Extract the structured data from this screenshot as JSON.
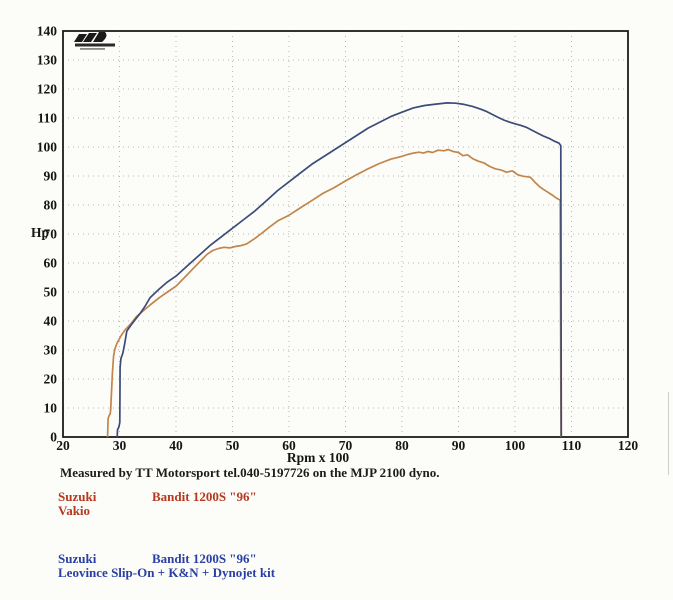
{
  "chart_data": {
    "type": "line",
    "title": "",
    "xlabel": "Rpm x 100",
    "ylabel": "Hp",
    "xlim": [
      20,
      120
    ],
    "ylim": [
      0,
      140
    ],
    "x_ticks": [
      20,
      30,
      40,
      50,
      60,
      70,
      80,
      90,
      100,
      110,
      120
    ],
    "y_ticks": [
      0,
      10,
      20,
      30,
      40,
      50,
      60,
      70,
      80,
      90,
      100,
      110,
      120,
      130,
      140
    ],
    "grid": "dotted",
    "legend_position": "none",
    "series": [
      {
        "key": "stock",
        "name": "Suzuki Bandit 1200S \"96\" Vakio",
        "color": "#c2854c",
        "peak_hp": 99,
        "points": [
          [
            27.9,
            0
          ],
          [
            27.95,
            4
          ],
          [
            28.0,
            6.5
          ],
          [
            28.2,
            7.5
          ],
          [
            28.35,
            8
          ],
          [
            28.45,
            9.5
          ],
          [
            28.55,
            14
          ],
          [
            28.75,
            22
          ],
          [
            28.95,
            28
          ],
          [
            29.2,
            30.5
          ],
          [
            29.6,
            32.5
          ],
          [
            30.3,
            35
          ],
          [
            31.0,
            37
          ],
          [
            32.0,
            39
          ],
          [
            33.0,
            41.5
          ],
          [
            33.6,
            42.5
          ],
          [
            34.5,
            44
          ],
          [
            35.4,
            45.5
          ],
          [
            37.0,
            48
          ],
          [
            38.5,
            50
          ],
          [
            40.0,
            52
          ],
          [
            41.5,
            55
          ],
          [
            43.0,
            58
          ],
          [
            44.5,
            61
          ],
          [
            45.5,
            63
          ],
          [
            46.5,
            64.3
          ],
          [
            47.5,
            65
          ],
          [
            48.5,
            65.4
          ],
          [
            49.5,
            65.2
          ],
          [
            50.5,
            65.7
          ],
          [
            51.5,
            66
          ],
          [
            52.5,
            66.6
          ],
          [
            54.0,
            68.5
          ],
          [
            55.0,
            70
          ],
          [
            56.6,
            72.5
          ],
          [
            58.0,
            74.5
          ],
          [
            60.0,
            76.5
          ],
          [
            62.0,
            79
          ],
          [
            64.0,
            81.5
          ],
          [
            66.0,
            84
          ],
          [
            68.0,
            86
          ],
          [
            70.0,
            88.3
          ],
          [
            72.0,
            90.5
          ],
          [
            74.0,
            92.5
          ],
          [
            76.0,
            94.3
          ],
          [
            78.0,
            95.8
          ],
          [
            80.0,
            96.8
          ],
          [
            81.0,
            97.4
          ],
          [
            82.0,
            97.9
          ],
          [
            83.0,
            98.2
          ],
          [
            83.8,
            97.9
          ],
          [
            84.6,
            98.5
          ],
          [
            85.4,
            98.1
          ],
          [
            86.4,
            98.9
          ],
          [
            87.4,
            98.7
          ],
          [
            88.2,
            99.1
          ],
          [
            89.0,
            98.5
          ],
          [
            90.0,
            98.1
          ],
          [
            90.8,
            97
          ],
          [
            91.6,
            97.3
          ],
          [
            92.5,
            96
          ],
          [
            93.5,
            95.1
          ],
          [
            94.5,
            94.5
          ],
          [
            95.5,
            93.3
          ],
          [
            96.5,
            92.5
          ],
          [
            97.5,
            92.1
          ],
          [
            98.5,
            91.3
          ],
          [
            99.5,
            91.8
          ],
          [
            100.5,
            90.4
          ],
          [
            101.5,
            89.9
          ],
          [
            102.7,
            89.6
          ],
          [
            103.5,
            87.9
          ],
          [
            104.3,
            86.4
          ],
          [
            105.0,
            85.4
          ],
          [
            105.8,
            84.4
          ],
          [
            106.6,
            83.4
          ],
          [
            107.3,
            82.4
          ],
          [
            108.0,
            81.7
          ],
          [
            108.15,
            0
          ]
        ]
      },
      {
        "key": "modified",
        "name": "Suzuki Bandit 1200S \"96\" Leovince Slip-On + K&N + Dynojet kit",
        "color": "#3c4b78",
        "peak_hp": 115,
        "points": [
          [
            29.6,
            0
          ],
          [
            29.65,
            2.5
          ],
          [
            29.9,
            3.5
          ],
          [
            30.0,
            4.5
          ],
          [
            30.05,
            5
          ],
          [
            30.1,
            24
          ],
          [
            30.25,
            27
          ],
          [
            30.6,
            29
          ],
          [
            30.9,
            32
          ],
          [
            31.3,
            36.5
          ],
          [
            32.0,
            38.5
          ],
          [
            33.0,
            41
          ],
          [
            33.6,
            42.5
          ],
          [
            34.5,
            45
          ],
          [
            35.4,
            48
          ],
          [
            37.0,
            51
          ],
          [
            38.5,
            53.5
          ],
          [
            40.0,
            55.5
          ],
          [
            42.0,
            59
          ],
          [
            44.0,
            62.5
          ],
          [
            46.0,
            66
          ],
          [
            48.0,
            69
          ],
          [
            50.0,
            72
          ],
          [
            52.0,
            75
          ],
          [
            54.0,
            78
          ],
          [
            56.0,
            81.5
          ],
          [
            58.0,
            85
          ],
          [
            60.0,
            88
          ],
          [
            62.0,
            91
          ],
          [
            64.0,
            94
          ],
          [
            66.0,
            96.5
          ],
          [
            68.0,
            99
          ],
          [
            70.0,
            101.5
          ],
          [
            72.0,
            104
          ],
          [
            74.0,
            106.5
          ],
          [
            76.0,
            108.5
          ],
          [
            78.0,
            110.5
          ],
          [
            80.0,
            112
          ],
          [
            82.0,
            113.5
          ],
          [
            84.0,
            114.3
          ],
          [
            86.0,
            114.8
          ],
          [
            88.0,
            115.2
          ],
          [
            89.5,
            115.1
          ],
          [
            91.0,
            114.7
          ],
          [
            92.5,
            114
          ],
          [
            94.0,
            113
          ],
          [
            95.0,
            112.2
          ],
          [
            96.0,
            111.2
          ],
          [
            97.0,
            110.2
          ],
          [
            98.0,
            109.3
          ],
          [
            99.0,
            108.6
          ],
          [
            100.0,
            108
          ],
          [
            101.0,
            107.5
          ],
          [
            102.0,
            106.8
          ],
          [
            103.0,
            105.8
          ],
          [
            104.0,
            104.8
          ],
          [
            105.0,
            103.8
          ],
          [
            106.0,
            103
          ],
          [
            107.0,
            102
          ],
          [
            107.8,
            101.3
          ],
          [
            108.1,
            100.5
          ],
          [
            108.2,
            0
          ]
        ]
      }
    ]
  },
  "axes": {
    "y_label": "Hp",
    "x_label": "Rpm x 100"
  },
  "footer": {
    "measured_by": "Measured by TT Motorsport tel.040-5197726 on the MJP 2100 dyno.",
    "legend_stock": {
      "make": "Suzuki",
      "model": "Bandit 1200S \"96\"",
      "config": "Vakio",
      "color": "#b5381f"
    },
    "legend_mod": {
      "make": "Suzuki",
      "model": "Bandit 1200S \"96\"",
      "config": "Leovince Slip-On + K&N + Dynojet kit",
      "color": "#2a3fa5"
    }
  },
  "colors": {
    "curve_stock": "#c2854c",
    "curve_modified": "#3c4b78",
    "frame": "#1b1b1b",
    "grid": "#b7b7ae",
    "faded_tick": "#8d8d86"
  }
}
